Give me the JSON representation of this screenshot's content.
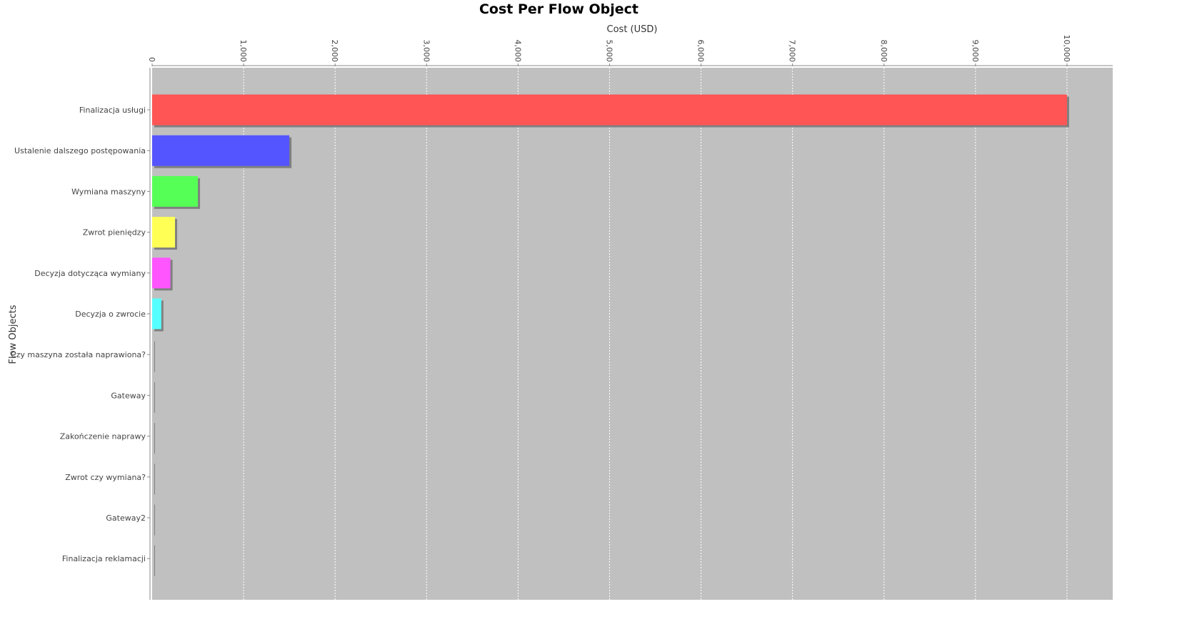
{
  "chart_data": {
    "type": "bar",
    "orientation": "horizontal",
    "title": "Cost Per Flow Object",
    "xlabel": "Cost (USD)",
    "ylabel": "Flow Objects",
    "xlim": [
      0,
      10500
    ],
    "x_ticks": [
      0,
      1000,
      2000,
      3000,
      4000,
      5000,
      6000,
      7000,
      8000,
      9000,
      10000
    ],
    "x_tick_labels": [
      "0",
      "1,000",
      "2,000",
      "3,000",
      "4,000",
      "5,000",
      "6,000",
      "7,000",
      "8,000",
      "9,000",
      "10,000"
    ],
    "x_axis_position": "top",
    "grid": true,
    "plot_background": "#c0c0c0",
    "categories": [
      "Finalizacja usługi",
      "Ustalenie dalszego postępowania",
      "Wymiana maszyny",
      "Zwrot pieniędzy",
      "Decyzja dotycząca wymiany",
      "Decyzja o zwrocie",
      "Czy maszyna została naprawiona?",
      "Gateway",
      "Zakończenie naprawy",
      "Zwrot czy wymiana?",
      "Gateway2",
      "Finalizacja reklamacji"
    ],
    "values": [
      10000,
      1500,
      500,
      250,
      200,
      100,
      0,
      0,
      0,
      0,
      0,
      0
    ],
    "colors": [
      "#ff5555",
      "#5555ff",
      "#55ff55",
      "#ffff55",
      "#ff55ff",
      "#55ffff",
      "#c0c0c0",
      "#c0c0c0",
      "#c0c0c0",
      "#c0c0c0",
      "#c0c0c0",
      "#c0c0c0"
    ]
  }
}
